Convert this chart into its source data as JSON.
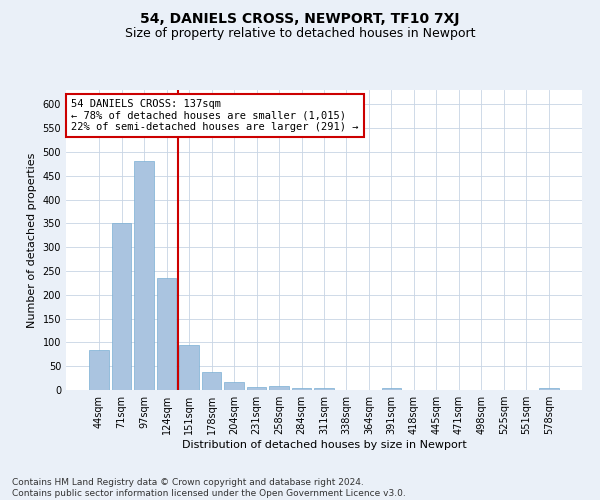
{
  "title": "54, DANIELS CROSS, NEWPORT, TF10 7XJ",
  "subtitle": "Size of property relative to detached houses in Newport",
  "xlabel": "Distribution of detached houses by size in Newport",
  "ylabel": "Number of detached properties",
  "categories": [
    "44sqm",
    "71sqm",
    "97sqm",
    "124sqm",
    "151sqm",
    "178sqm",
    "204sqm",
    "231sqm",
    "258sqm",
    "284sqm",
    "311sqm",
    "338sqm",
    "364sqm",
    "391sqm",
    "418sqm",
    "445sqm",
    "471sqm",
    "498sqm",
    "525sqm",
    "551sqm",
    "578sqm"
  ],
  "values": [
    83,
    350,
    480,
    235,
    95,
    38,
    17,
    7,
    8,
    5,
    5,
    0,
    0,
    5,
    0,
    0,
    0,
    0,
    0,
    0,
    5
  ],
  "bar_color": "#aac4e0",
  "bar_edge_color": "#7aafd4",
  "vline_x": 3.5,
  "vline_color": "#cc0000",
  "annotation_text": "54 DANIELS CROSS: 137sqm\n← 78% of detached houses are smaller (1,015)\n22% of semi-detached houses are larger (291) →",
  "annotation_box_color": "#ffffff",
  "annotation_box_edge_color": "#cc0000",
  "ylim": [
    0,
    630
  ],
  "yticks": [
    0,
    50,
    100,
    150,
    200,
    250,
    300,
    350,
    400,
    450,
    500,
    550,
    600
  ],
  "footer": "Contains HM Land Registry data © Crown copyright and database right 2024.\nContains public sector information licensed under the Open Government Licence v3.0.",
  "bg_color": "#eaf0f8",
  "plot_bg_color": "#ffffff",
  "grid_color": "#c8d4e4",
  "title_fontsize": 10,
  "subtitle_fontsize": 9,
  "axis_label_fontsize": 8,
  "tick_fontsize": 7,
  "annotation_fontsize": 7.5,
  "footer_fontsize": 6.5
}
